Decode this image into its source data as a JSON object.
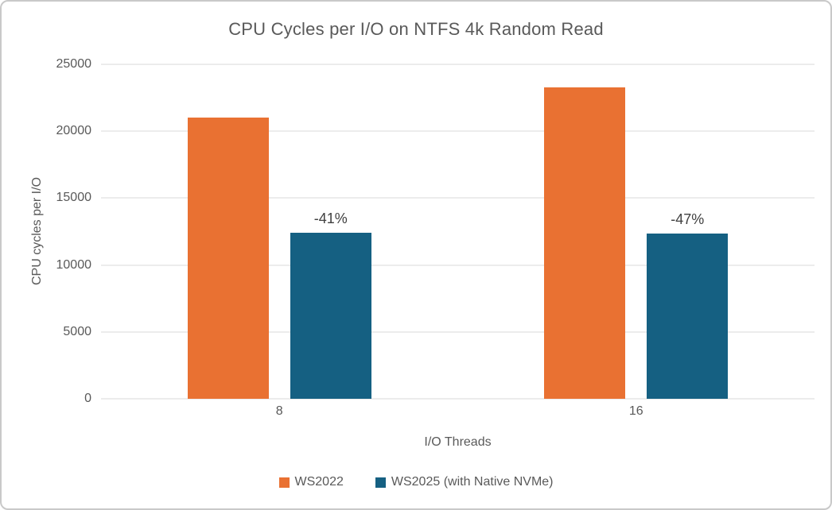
{
  "chart_data": {
    "type": "bar",
    "title": "CPU Cycles per I/O on NTFS 4k Random Read",
    "xlabel": "I/O Threads",
    "ylabel": "CPU cycles per I/O",
    "categories": [
      "8",
      "16"
    ],
    "series": [
      {
        "name": "WS2022",
        "color": "#E97132",
        "values": [
          21000,
          23300
        ]
      },
      {
        "name": "WS2025 (with Native NVMe)",
        "color": "#156082",
        "values": [
          12400,
          12350
        ],
        "bar_labels": [
          "-41%",
          "-47%"
        ]
      }
    ],
    "ylim": [
      0,
      25000
    ],
    "ytick_step": 5000,
    "grid": "horizontal",
    "legend_position": "bottom"
  },
  "colors": {
    "grid": "#D9D9D9",
    "axis_text": "#595959",
    "title_text": "#595959",
    "data_label_text": "#404040",
    "border": "#C9C9C9",
    "background": "#FFFFFF"
  }
}
